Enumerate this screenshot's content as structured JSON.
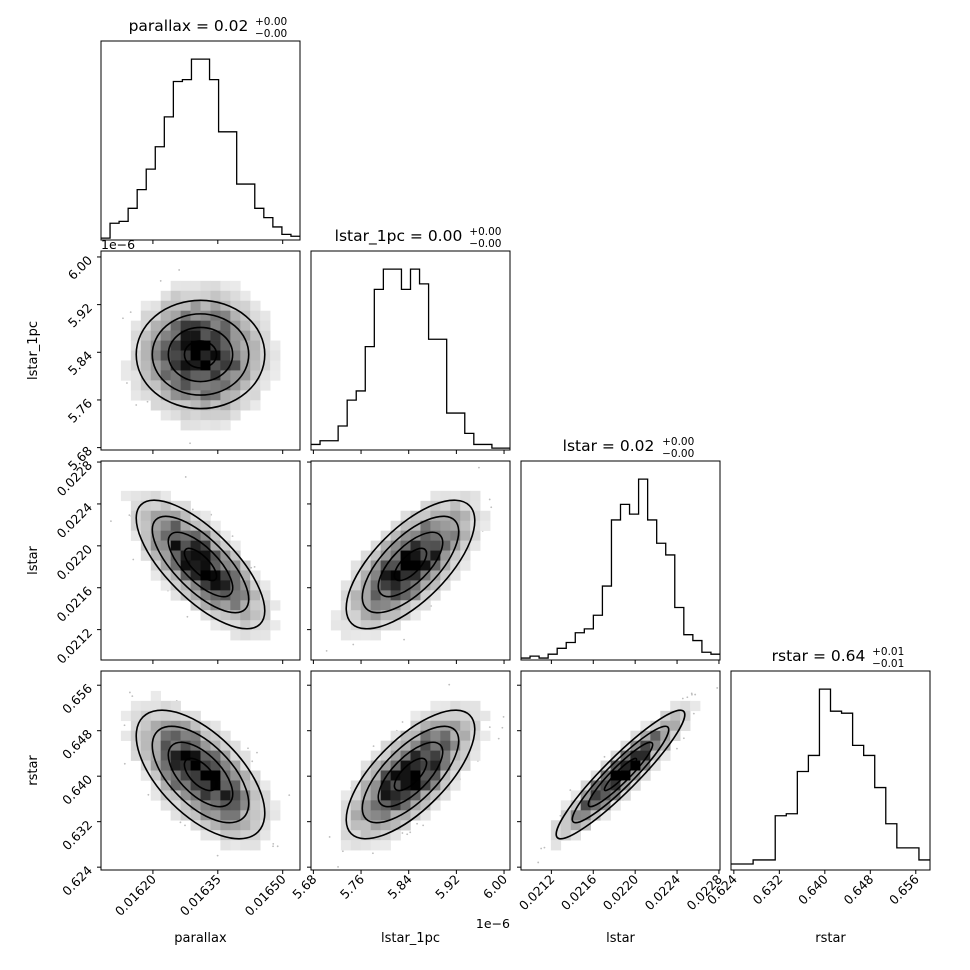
{
  "chart_data": {
    "type": "corner",
    "parameters": [
      "parallax",
      "lstar_1pc",
      "lstar",
      "rstar"
    ],
    "axis_labels": [
      "parallax",
      "lstar_1pc",
      "lstar",
      "rstar"
    ],
    "titles": [
      {
        "name": "parallax",
        "value": "0.02",
        "plus": "+0.00",
        "minus": "−0.00"
      },
      {
        "name": "lstar_1pc",
        "value": "0.00",
        "plus": "+0.00",
        "minus": "−0.00"
      },
      {
        "name": "lstar",
        "value": "0.02",
        "plus": "+0.00",
        "minus": "−0.00"
      },
      {
        "name": "rstar",
        "value": "0.64",
        "plus": "+0.01",
        "minus": "−0.01"
      }
    ],
    "offset_labels": [
      {
        "text": "1e−6",
        "applies_to": "lstar_1pc y-axis"
      },
      {
        "text": "1e−6",
        "applies_to": "lstar_1pc x-axis"
      }
    ],
    "ranges": [
      [
        0.01608,
        0.01654
      ],
      [
        5.676e-06,
        6.01e-06
      ],
      [
        0.02091,
        0.02281
      ],
      [
        0.6235,
        0.6585
      ]
    ],
    "ticks": [
      {
        "values": [
          0.0162,
          0.01635,
          0.0165
        ],
        "labels": [
          "0.01620",
          "0.01635",
          "0.01650"
        ]
      },
      {
        "values": [
          5.68e-06,
          5.76e-06,
          5.84e-06,
          5.92e-06,
          6e-06
        ],
        "labels": [
          "5.68",
          "5.76",
          "5.84",
          "5.92",
          "6.00"
        ]
      },
      {
        "values": [
          0.0212,
          0.0216,
          0.022,
          0.0224,
          0.0228
        ],
        "labels": [
          "0.0212",
          "0.0216",
          "0.0220",
          "0.0224",
          "0.0228"
        ]
      },
      {
        "values": [
          0.624,
          0.632,
          0.64,
          0.648,
          0.656
        ],
        "labels": [
          "0.624",
          "0.632",
          "0.640",
          "0.648",
          "0.656"
        ]
      }
    ],
    "histograms": [
      {
        "param": "parallax",
        "counts": [
          1,
          9,
          10,
          17,
          27,
          38,
          50,
          66,
          85,
          86,
          97,
          97,
          86,
          58,
          58,
          30,
          30,
          17,
          12,
          7,
          3,
          2
        ]
      },
      {
        "param": "lstar_1pc",
        "counts": [
          3,
          5,
          5,
          13,
          27,
          32,
          56,
          87,
          98,
          98,
          87,
          98,
          90,
          60,
          60,
          20,
          20,
          9,
          3,
          3,
          1,
          1
        ]
      },
      {
        "param": "lstar",
        "counts": [
          1,
          2,
          1,
          3,
          6,
          9,
          14,
          16,
          23,
          38,
          72,
          80,
          75,
          93,
          72,
          60,
          54,
          27,
          13,
          10,
          4,
          3
        ]
      },
      {
        "param": "rstar",
        "counts": [
          3,
          3,
          5,
          5,
          27,
          28,
          49,
          57,
          90,
          79,
          78,
          62,
          57,
          41,
          23,
          11,
          11,
          5
        ]
      }
    ],
    "correlations": [
      {
        "x": "parallax",
        "y": "lstar_1pc",
        "rho": 0.0
      },
      {
        "x": "parallax",
        "y": "lstar",
        "rho": -0.72
      },
      {
        "x": "lstar_1pc",
        "y": "lstar",
        "rho": 0.68
      },
      {
        "x": "parallax",
        "y": "rstar",
        "rho": -0.6
      },
      {
        "x": "lstar_1pc",
        "y": "rstar",
        "rho": 0.7
      },
      {
        "x": "lstar",
        "y": "rstar",
        "rho": 0.93
      }
    ],
    "contour_levels": 3,
    "grid": false
  }
}
